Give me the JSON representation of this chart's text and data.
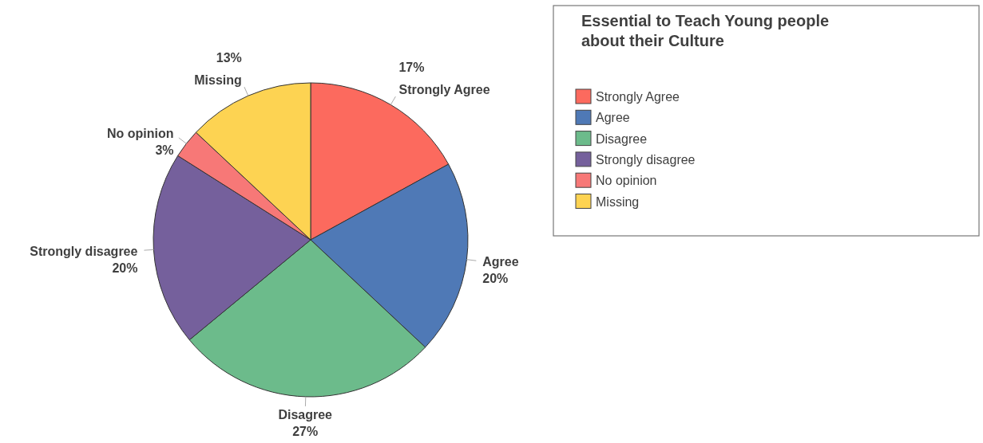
{
  "chart_data": {
    "type": "pie",
    "title": "Essential to Teach Young people about their Culture",
    "categories": [
      "Strongly Agree",
      "Agree",
      "Disagree",
      "Strongly disagree",
      "No opinion",
      "Missing"
    ],
    "values": [
      17,
      20,
      27,
      20,
      3,
      13
    ],
    "value_labels": [
      "17%",
      "20%",
      "27%",
      "20%",
      "3%",
      "13%"
    ],
    "colors": [
      "#fc6a5e",
      "#4f79b6",
      "#6cbb8b",
      "#75609c",
      "#f77877",
      "#fdd352"
    ],
    "legend": "top right"
  }
}
